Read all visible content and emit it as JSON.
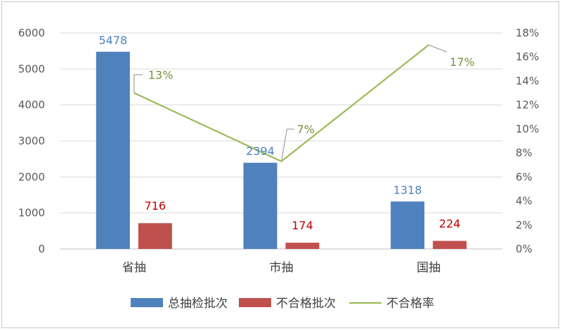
{
  "chart_data": {
    "type": "bar",
    "categories": [
      "省抽",
      "市抽",
      "国抽"
    ],
    "series": [
      {
        "name": "总抽检批次",
        "kind": "bar",
        "axis": "left",
        "color": "#4f81bd",
        "values": [
          5478,
          2394,
          1318
        ],
        "labels": [
          "5478",
          "2394",
          "1318"
        ],
        "label_color": "#4f81bd"
      },
      {
        "name": "不合格批次",
        "kind": "bar",
        "axis": "left",
        "color": "#c0504d",
        "values": [
          716,
          174,
          224
        ],
        "labels": [
          "716",
          "174",
          "224"
        ],
        "label_color": "#c00000"
      },
      {
        "name": "不合格率",
        "kind": "line",
        "axis": "right",
        "color": "#9bbb59",
        "values": [
          0.13,
          0.073,
          0.17
        ],
        "labels": [
          "13%",
          "7%",
          "17%"
        ],
        "label_color": "#77933c"
      }
    ],
    "left_axis": {
      "min": 0,
      "max": 6000,
      "ticks": [
        "0",
        "1000",
        "2000",
        "3000",
        "4000",
        "5000",
        "6000"
      ]
    },
    "right_axis": {
      "min": 0,
      "max": 0.18,
      "ticks": [
        "0%",
        "2%",
        "4%",
        "6%",
        "8%",
        "10%",
        "12%",
        "14%",
        "16%",
        "18%"
      ]
    },
    "grid": true,
    "legend_position": "bottom",
    "title": "",
    "xlabel": "",
    "ylabel": ""
  }
}
